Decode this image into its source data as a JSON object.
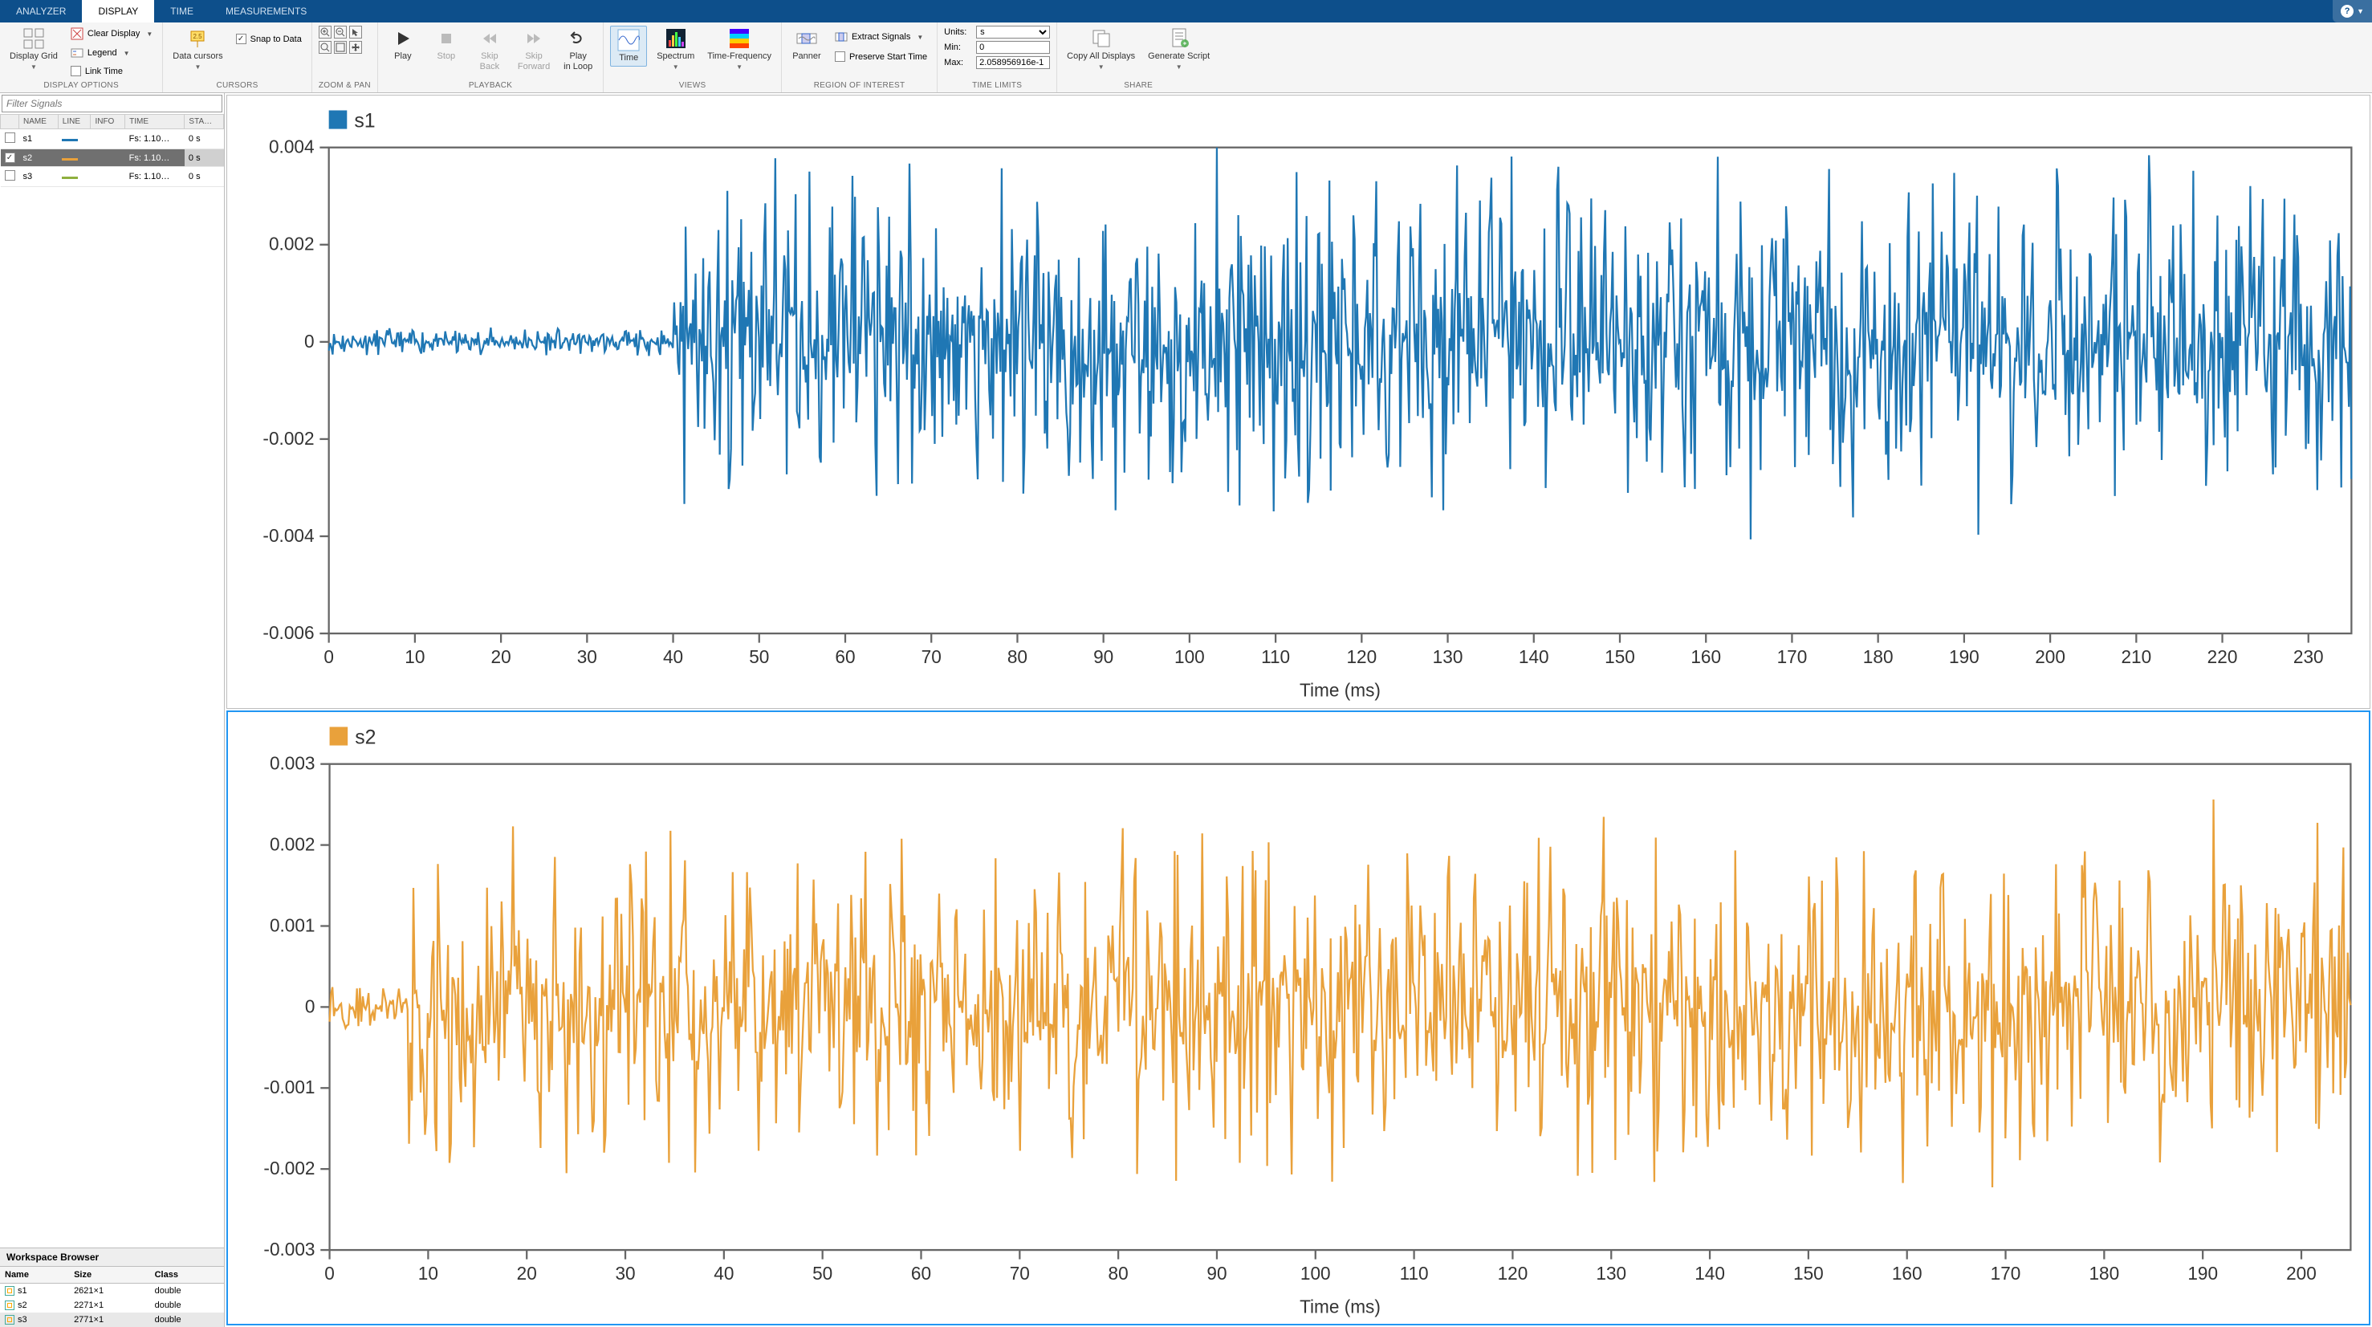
{
  "tabs": {
    "items": [
      "ANALYZER",
      "DISPLAY",
      "TIME",
      "MEASUREMENTS"
    ],
    "active": 1
  },
  "ribbon": {
    "display_options": {
      "label": "DISPLAY OPTIONS",
      "display_grid": "Display Grid",
      "clear_display": "Clear Display",
      "legend": "Legend",
      "link_time": "Link Time"
    },
    "cursors": {
      "label": "CURSORS",
      "data_cursors": "Data cursors",
      "snap": "Snap to Data",
      "snap_checked": true
    },
    "zoom_pan": {
      "label": "ZOOM & PAN"
    },
    "playback": {
      "label": "PLAYBACK",
      "play": "Play",
      "stop": "Stop",
      "skip_back": "Skip\nBack",
      "skip_fwd": "Skip\nForward",
      "loop": "Play\nin Loop"
    },
    "views": {
      "label": "VIEWS",
      "time": "Time",
      "spectrum": "Spectrum",
      "timefreq": "Time-Frequency"
    },
    "roi": {
      "label": "REGION OF INTEREST",
      "panner": "Panner",
      "extract": "Extract Signals",
      "preserve": "Preserve Start Time",
      "preserve_checked": false
    },
    "time_limits": {
      "label": "TIME LIMITS",
      "units_lbl": "Units:",
      "units_val": "s",
      "min_lbl": "Min:",
      "min_val": "0",
      "max_lbl": "Max:",
      "max_val": "2.058956916e-1"
    },
    "share": {
      "label": "SHARE",
      "copy": "Copy All Displays",
      "gen": "Generate Script"
    }
  },
  "signals": {
    "filter_placeholder": "Filter Signals",
    "cols": {
      "name": "NAME",
      "line": "LINE",
      "info": "INFO",
      "time": "TIME",
      "start": "STA…"
    },
    "rows": [
      {
        "name": "s1",
        "color": "#1f77b4",
        "info": "",
        "time": "Fs: 1.10…",
        "start": "0 s",
        "checked": false,
        "selected": false
      },
      {
        "name": "s2",
        "color": "#e9a13b",
        "info": "",
        "time": "Fs: 1.10…",
        "start": "0 s",
        "checked": true,
        "selected": true
      },
      {
        "name": "s3",
        "color": "#8fb03e",
        "info": "",
        "time": "Fs: 1.10…",
        "start": "0 s",
        "checked": false,
        "selected": false
      }
    ]
  },
  "workspace": {
    "title": "Workspace Browser",
    "cols": {
      "name": "Name",
      "size": "Size",
      "class": "Class"
    },
    "rows": [
      {
        "name": "s1",
        "size": "2621×1",
        "class": "double",
        "selected": false
      },
      {
        "name": "s2",
        "size": "2271×1",
        "class": "double",
        "selected": false
      },
      {
        "name": "s3",
        "size": "2771×1",
        "class": "double",
        "selected": true
      }
    ]
  },
  "charts": [
    {
      "legend": "s1",
      "color": "#1f77b4",
      "selected": false,
      "xlabel": "Time (ms)",
      "xlim": [
        0,
        235
      ],
      "xtick_step": 10,
      "ylim": [
        -0.006,
        0.004
      ],
      "yticks": [
        -0.006,
        -0.004,
        -0.002,
        0,
        0.002,
        0.004
      ],
      "background": "#ffffff",
      "grid_color": "#666666",
      "axis_color": "#666666",
      "label_fontsize": 10,
      "line_width": 1,
      "noise_profile": {
        "quiet_until_x": 40,
        "quiet_amp": 0.0003,
        "loud_amp_min": 0.002,
        "loud_amp_max": 0.0045,
        "n": 1600,
        "seed": 11
      }
    },
    {
      "legend": "s2",
      "color": "#e9a13b",
      "selected": true,
      "xlabel": "Time (ms)",
      "xlim": [
        0,
        205
      ],
      "xtick_step": 10,
      "ylim": [
        -0.003,
        0.003
      ],
      "yticks": [
        -0.003,
        -0.002,
        -0.001,
        0,
        0.001,
        0.002,
        0.003
      ],
      "background": "#ffffff",
      "grid_color": "#666666",
      "axis_color": "#666666",
      "label_fontsize": 10,
      "line_width": 1,
      "noise_profile": {
        "quiet_until_x": 8,
        "quiet_amp": 0.0003,
        "loud_amp_min": 0.0012,
        "loud_amp_max": 0.0026,
        "n": 1400,
        "seed": 29
      }
    }
  ]
}
